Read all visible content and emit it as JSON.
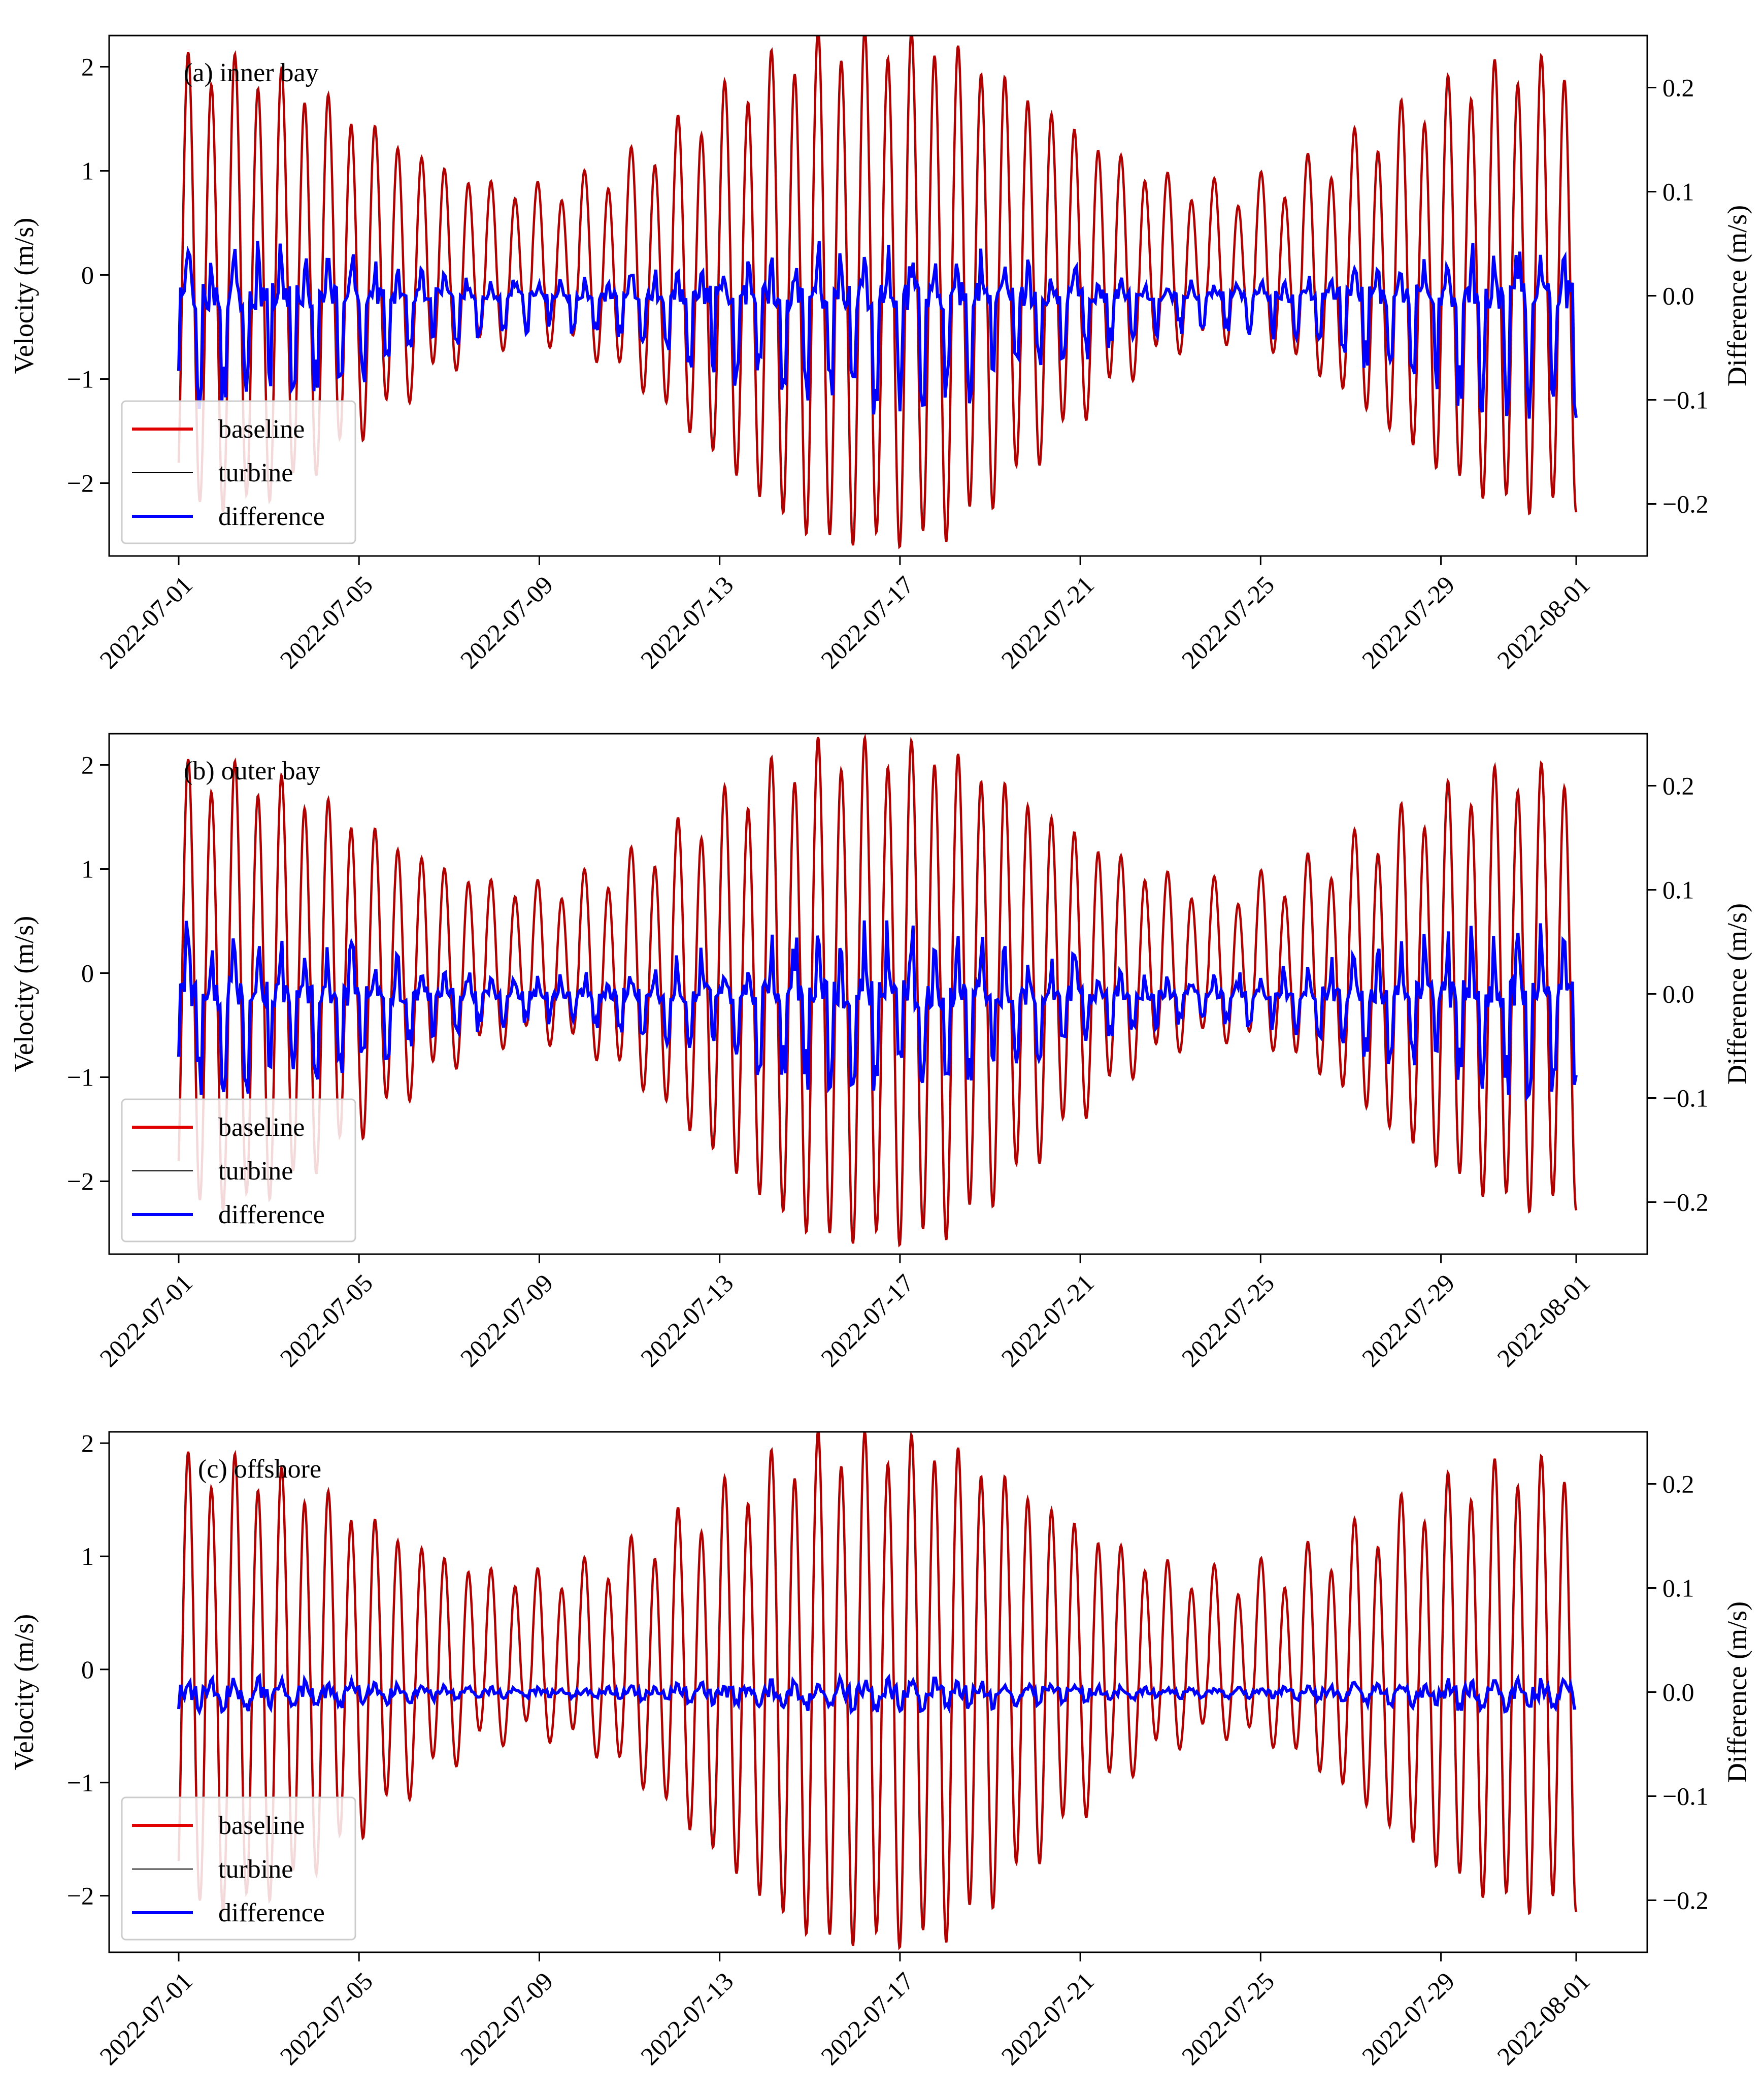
{
  "chart_data": [
    {
      "type": "line",
      "title": "(a) inner bay",
      "ylabel": "Velocity (m/s)",
      "ylabel_right": "Difference (m/s)",
      "ylim": [
        -2.7,
        2.3
      ],
      "ylim_right": [
        -0.25,
        0.25
      ],
      "yticks": [
        "−2",
        "−1",
        "0",
        "1",
        "2"
      ],
      "yticks_right": [
        "−0.2",
        "−0.1",
        "0.0",
        "0.1",
        "0.2"
      ],
      "x_start": "2022-07-01",
      "x_end": "2022-08-01",
      "xticks": [
        "2022-07-01",
        "2022-07-05",
        "2022-07-09",
        "2022-07-13",
        "2022-07-17",
        "2022-07-21",
        "2022-07-25",
        "2022-07-29",
        "2022-08-01"
      ],
      "legend": [
        "baseline",
        "turbine",
        "difference"
      ],
      "legend_position": "lower-left",
      "colors": {
        "baseline": "#e00000",
        "baseline_line": "#b00000",
        "turbine": "#000000",
        "difference": "#0000ff"
      },
      "series": [
        {
          "name": "baseline / turbine",
          "axis": "left",
          "peak_flood_velocity": 2.15,
          "peak_ebb_velocity": -2.45,
          "neap_flood_velocity": 0.8,
          "neap_ebb_velocity": -0.6
        },
        {
          "name": "difference",
          "axis": "right",
          "max_difference": 0.07,
          "min_difference": -0.12
        }
      ]
    },
    {
      "type": "line",
      "title": "(b) outer bay",
      "ylabel": "Velocity (m/s)",
      "ylabel_right": "Difference (m/s)",
      "ylim": [
        -2.7,
        2.3
      ],
      "ylim_right": [
        -0.25,
        0.25
      ],
      "yticks": [
        "−2",
        "−1",
        "0",
        "1",
        "2"
      ],
      "yticks_right": [
        "−0.2",
        "−0.1",
        "0.0",
        "0.1",
        "0.2"
      ],
      "x_start": "2022-07-01",
      "x_end": "2022-08-01",
      "xticks": [
        "2022-07-01",
        "2022-07-05",
        "2022-07-09",
        "2022-07-13",
        "2022-07-17",
        "2022-07-21",
        "2022-07-25",
        "2022-07-29",
        "2022-08-01"
      ],
      "legend": [
        "baseline",
        "turbine",
        "difference"
      ],
      "legend_position": "lower-left",
      "colors": {
        "baseline": "#e00000",
        "baseline_line": "#b00000",
        "turbine": "#000000",
        "difference": "#0000ff"
      },
      "series": [
        {
          "name": "baseline / turbine",
          "axis": "left",
          "peak_flood_velocity": 2.05,
          "peak_ebb_velocity": -2.45,
          "neap_flood_velocity": 0.8,
          "neap_ebb_velocity": -0.6
        },
        {
          "name": "difference",
          "axis": "right",
          "max_difference": 0.09,
          "min_difference": -0.1
        }
      ]
    },
    {
      "type": "line",
      "title": "(c) offshore",
      "ylabel": "Velocity (m/s)",
      "ylabel_right": "Difference (m/s)",
      "ylim": [
        -2.5,
        2.1
      ],
      "ylim_right": [
        -0.25,
        0.25
      ],
      "yticks": [
        "−2",
        "−1",
        "0",
        "1",
        "2"
      ],
      "yticks_right": [
        "−0.2",
        "−0.1",
        "0.0",
        "0.1",
        "0.2"
      ],
      "x_start": "2022-07-01",
      "x_end": "2022-08-01",
      "xticks": [
        "2022-07-01",
        "2022-07-05",
        "2022-07-09",
        "2022-07-13",
        "2022-07-17",
        "2022-07-21",
        "2022-07-25",
        "2022-07-29",
        "2022-08-01"
      ],
      "legend": [
        "baseline",
        "turbine",
        "difference"
      ],
      "legend_position": "lower-left",
      "colors": {
        "baseline": "#e00000",
        "baseline_line": "#b00000",
        "turbine": "#000000",
        "difference": "#0000ff"
      },
      "series": [
        {
          "name": "baseline / turbine",
          "axis": "left",
          "peak_flood_velocity": 1.9,
          "peak_ebb_velocity": -2.3,
          "neap_flood_velocity": 0.8,
          "neap_ebb_velocity": -0.55
        },
        {
          "name": "difference",
          "axis": "right",
          "max_difference": 0.02,
          "min_difference": -0.02
        }
      ]
    }
  ]
}
